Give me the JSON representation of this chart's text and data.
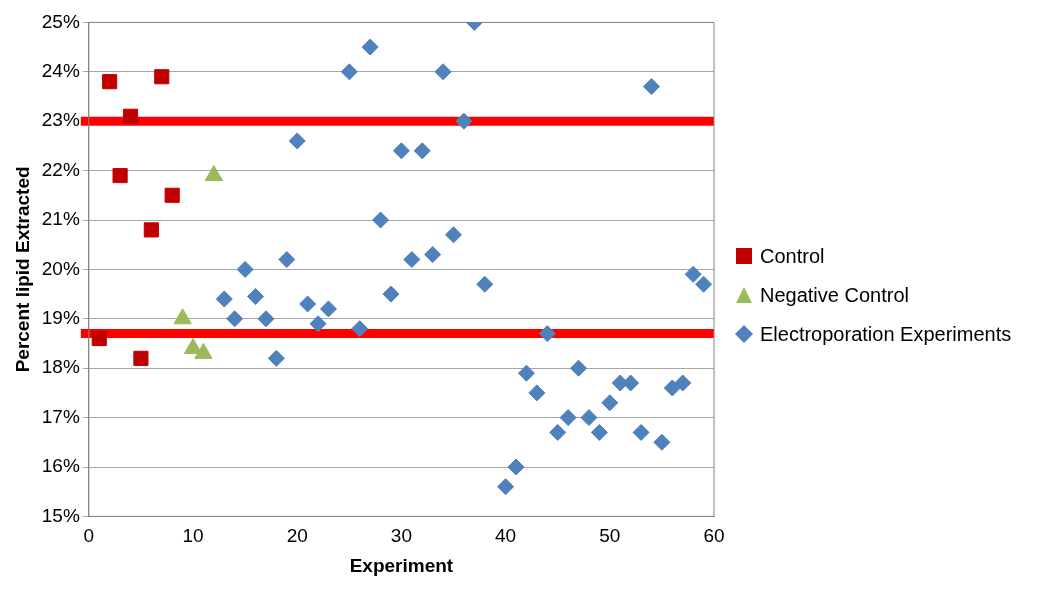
{
  "chart_data": {
    "type": "scatter",
    "xlabel": "Experiment",
    "ylabel": "Percent lipid Extracted",
    "xlim": [
      0,
      60
    ],
    "xticks": [
      0,
      10,
      20,
      30,
      40,
      50,
      60
    ],
    "ylim": [
      15,
      25
    ],
    "yticks": [
      {
        "value": 15,
        "label": "15%"
      },
      {
        "value": 16,
        "label": "16%"
      },
      {
        "value": 17,
        "label": "17%"
      },
      {
        "value": 18,
        "label": "18%"
      },
      {
        "value": 19,
        "label": "19%"
      },
      {
        "value": 20,
        "label": "20%"
      },
      {
        "value": 21,
        "label": "21%"
      },
      {
        "value": 22,
        "label": "22%"
      },
      {
        "value": 23,
        "label": "23%"
      },
      {
        "value": 24,
        "label": "24%"
      },
      {
        "value": 25,
        "label": "25%"
      }
    ],
    "grid": "y",
    "legend": "right",
    "series": [
      {
        "name": "Control",
        "color": "#c00000",
        "marker": "square",
        "x": [
          1,
          2,
          3,
          4,
          5,
          6,
          7,
          8
        ],
        "values": [
          18.6,
          23.8,
          21.9,
          23.1,
          18.2,
          20.8,
          23.9,
          21.5
        ]
      },
      {
        "name": "Negative Control",
        "color": "#9bbb59",
        "marker": "triangle",
        "x": [
          9,
          10,
          11,
          12
        ],
        "values": [
          19.0,
          18.4,
          18.3,
          21.9
        ]
      },
      {
        "name": "Electroporation Experiments",
        "color": "#4f81bd",
        "marker": "diamond",
        "x": [
          13,
          14,
          15,
          16,
          17,
          18,
          19,
          20,
          21,
          22,
          23,
          25,
          26,
          27,
          28,
          29,
          30,
          31,
          32,
          33,
          34,
          35,
          36,
          37,
          38,
          40,
          41,
          42,
          43,
          44,
          45,
          46,
          47,
          48,
          49,
          50,
          51,
          52,
          53,
          54,
          55,
          56,
          57,
          58,
          59
        ],
        "values": [
          19.4,
          19.0,
          20.0,
          19.45,
          19.0,
          18.2,
          20.2,
          22.6,
          19.3,
          18.9,
          19.2,
          24.0,
          18.8,
          24.5,
          21.0,
          19.5,
          22.4,
          20.2,
          22.4,
          20.3,
          24.0,
          20.7,
          23.0,
          25.0,
          19.7,
          15.6,
          16.0,
          17.9,
          17.5,
          18.7,
          16.7,
          17.0,
          18.0,
          17.0,
          16.7,
          17.3,
          17.7,
          17.7,
          16.7,
          23.7,
          16.5,
          17.6,
          17.7,
          19.9,
          19.7
        ]
      }
    ],
    "ref_lines": [
      {
        "axis": "y",
        "value": 23,
        "color": "#ff0000"
      },
      {
        "axis": "y",
        "value": 18.7,
        "color": "#ff0000"
      }
    ]
  }
}
